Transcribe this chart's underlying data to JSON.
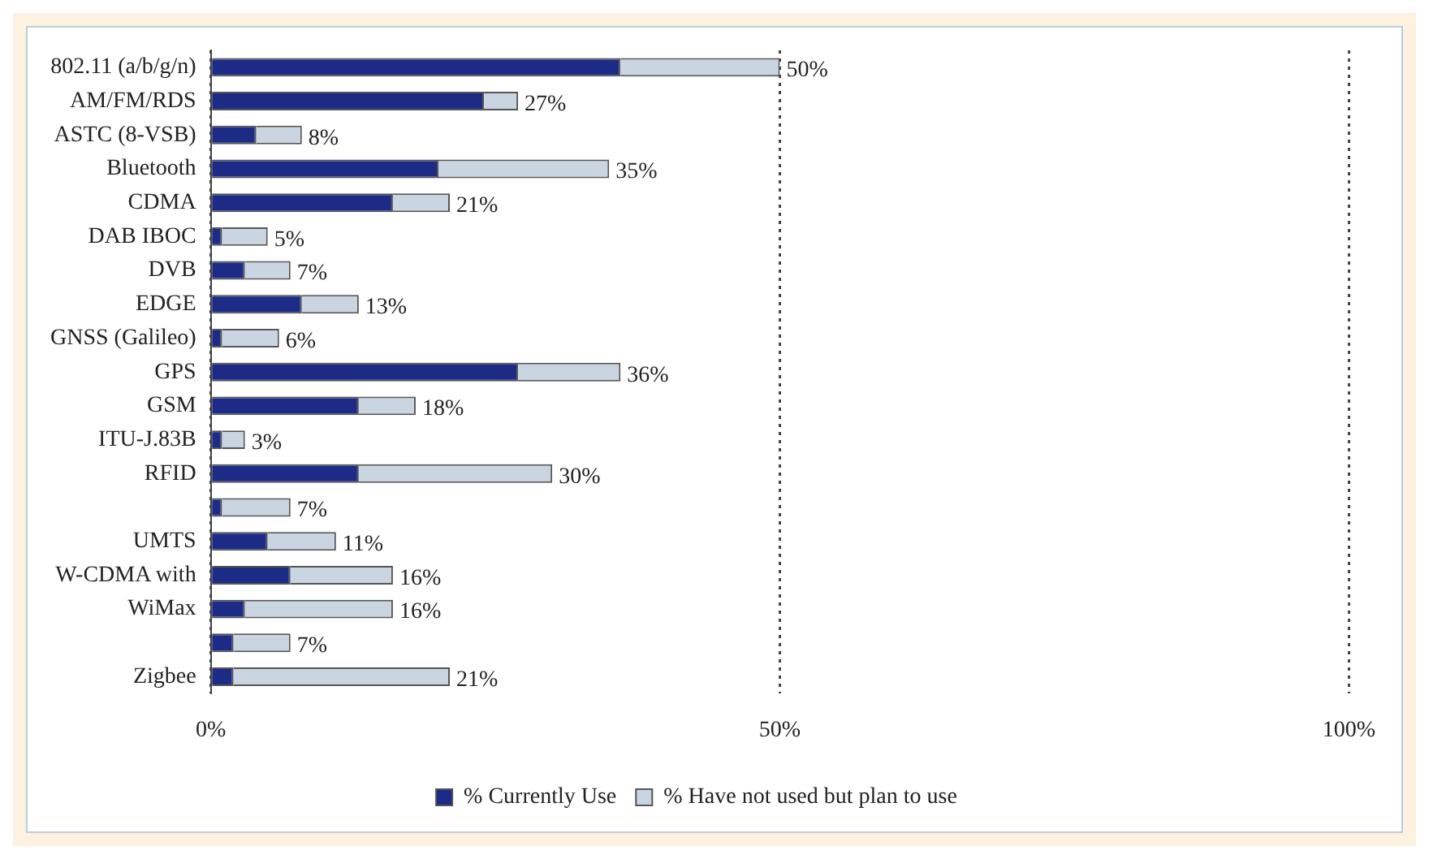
{
  "chart_data": {
    "type": "bar",
    "orientation": "horizontal",
    "stacked": true,
    "categories": [
      "802.11 (a/b/g/n)",
      "AM/FM/RDS",
      "ASTC (8-VSB)",
      "Bluetooth",
      "CDMA",
      "DAB IBOC",
      "DVB",
      "EDGE",
      "GNSS (Galileo)",
      "GPS",
      "GSM",
      "ITU-J.83B",
      "RFID",
      null,
      "UMTS",
      "W-CDMA with",
      "WiMax",
      null,
      "Zigbee"
    ],
    "series": [
      {
        "name": "% Currently Use",
        "color": "#1c2c86",
        "values": [
          36,
          24,
          4,
          20,
          16,
          1,
          3,
          8,
          1,
          27,
          13,
          1,
          13,
          1,
          5,
          7,
          3,
          2,
          2
        ]
      },
      {
        "name": "% Have not used but plan to use",
        "color": "#c9d5e1",
        "values": [
          14,
          3,
          4,
          15,
          5,
          4,
          4,
          5,
          5,
          9,
          5,
          2,
          17,
          6,
          6,
          9,
          13,
          5,
          19
        ]
      }
    ],
    "totals": [
      "50%",
      "27%",
      "8%",
      "35%",
      "21%",
      "5%",
      "7%",
      "13%",
      "6%",
      "36%",
      "18%",
      "3%",
      "30%",
      "7%",
      "11%",
      "16%",
      "16%",
      "7%",
      "21%"
    ],
    "xlim": [
      0,
      100
    ],
    "xticks": [
      {
        "value": 0,
        "label": "0%"
      },
      {
        "value": 50,
        "label": "50%"
      },
      {
        "value": 100,
        "label": "100%"
      }
    ],
    "grid": "x",
    "legend": "bottom"
  }
}
